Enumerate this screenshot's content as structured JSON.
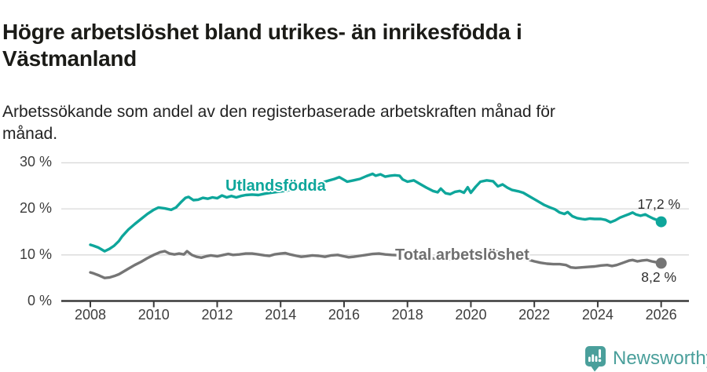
{
  "header": {
    "title": [
      "Högre arbetslöshet bland utrikes- än inrikesfödda i",
      "Västmanland"
    ],
    "subtitle": [
      "Arbetssökande som andel av den registerbaserade arbetskraften månad för",
      "månad."
    ]
  },
  "footer": {
    "brand": "Newsworthy"
  },
  "colors": {
    "accent_teal": "#0ea69b",
    "series_gray": "#757575",
    "grid": "#d9d9d9",
    "axis": "#3a3a3a",
    "axis_text": "#3d3d3d",
    "title_text": "#1b1b17",
    "value_label_text": "#2d2d2d",
    "logo_teal": "#4a9f9b"
  },
  "chart_data": {
    "type": "line",
    "title": "Högre arbetslöshet bland utrikes- än inrikesfödda i Västmanland",
    "subtitle": "Arbetssökande som andel av den registerbaserade arbetskraften månad för månad.",
    "unit": "%",
    "grid": true,
    "legend_position": "inline-labels",
    "x_axis": {
      "range": [
        2007.1,
        2026.9
      ],
      "ticks": [
        {
          "value": 2008,
          "label": "2008"
        },
        {
          "value": 2010,
          "label": "2010"
        },
        {
          "value": 2012,
          "label": "2012"
        },
        {
          "value": 2014,
          "label": "2014"
        },
        {
          "value": 2016,
          "label": "2016"
        },
        {
          "value": 2018,
          "label": "2018"
        },
        {
          "value": 2020,
          "label": "2020"
        },
        {
          "value": 2022,
          "label": "2022"
        },
        {
          "value": 2024,
          "label": "2024"
        },
        {
          "value": 2026,
          "label": "2026"
        }
      ]
    },
    "y_axis": {
      "range": [
        0,
        33
      ],
      "ticks": [
        {
          "value": 30,
          "label": "30 %"
        },
        {
          "value": 20,
          "label": "20 %"
        },
        {
          "value": 10,
          "label": "10 %"
        },
        {
          "value": 0,
          "label": "0 %"
        }
      ]
    },
    "series": [
      {
        "name": "Utlandsfödda",
        "label": "Utlandsfödda",
        "color": "#0ea69b",
        "end_value": 17.2,
        "end_label": "17,2 %",
        "points": [
          [
            2008.0,
            12.2
          ],
          [
            2008.1,
            12.0
          ],
          [
            2008.25,
            11.6
          ],
          [
            2008.45,
            10.8
          ],
          [
            2008.6,
            11.3
          ],
          [
            2008.75,
            12.0
          ],
          [
            2008.9,
            13.0
          ],
          [
            2009.0,
            14.0
          ],
          [
            2009.2,
            15.5
          ],
          [
            2009.4,
            16.7
          ],
          [
            2009.6,
            17.8
          ],
          [
            2009.8,
            18.9
          ],
          [
            2010.0,
            19.8
          ],
          [
            2010.15,
            20.3
          ],
          [
            2010.35,
            20.1
          ],
          [
            2010.55,
            19.8
          ],
          [
            2010.7,
            20.3
          ],
          [
            2010.85,
            21.4
          ],
          [
            2011.0,
            22.4
          ],
          [
            2011.1,
            22.6
          ],
          [
            2011.25,
            21.9
          ],
          [
            2011.4,
            22.0
          ],
          [
            2011.55,
            22.4
          ],
          [
            2011.7,
            22.2
          ],
          [
            2011.85,
            22.5
          ],
          [
            2012.0,
            22.3
          ],
          [
            2012.15,
            22.9
          ],
          [
            2012.3,
            22.5
          ],
          [
            2012.45,
            22.8
          ],
          [
            2012.6,
            22.5
          ],
          [
            2012.75,
            22.8
          ],
          [
            2012.9,
            23.0
          ],
          [
            2013.1,
            23.1
          ],
          [
            2013.3,
            23.0
          ],
          [
            2013.5,
            23.3
          ],
          [
            2013.7,
            23.5
          ],
          [
            2013.9,
            23.7
          ],
          [
            2014.1,
            23.9
          ],
          [
            2014.3,
            24.1
          ],
          [
            2014.5,
            24.3
          ],
          [
            2014.7,
            24.6
          ],
          [
            2014.9,
            25.0
          ],
          [
            2015.1,
            25.4
          ],
          [
            2015.3,
            25.7
          ],
          [
            2015.5,
            26.1
          ],
          [
            2015.7,
            26.5
          ],
          [
            2015.85,
            26.9
          ],
          [
            2016.0,
            26.3
          ],
          [
            2016.1,
            25.9
          ],
          [
            2016.3,
            26.2
          ],
          [
            2016.5,
            26.5
          ],
          [
            2016.7,
            27.1
          ],
          [
            2016.9,
            27.6
          ],
          [
            2017.0,
            27.2
          ],
          [
            2017.15,
            27.5
          ],
          [
            2017.3,
            27.0
          ],
          [
            2017.45,
            27.2
          ],
          [
            2017.6,
            27.3
          ],
          [
            2017.75,
            27.2
          ],
          [
            2017.85,
            26.4
          ],
          [
            2018.0,
            25.9
          ],
          [
            2018.2,
            26.2
          ],
          [
            2018.4,
            25.4
          ],
          [
            2018.6,
            24.6
          ],
          [
            2018.8,
            23.9
          ],
          [
            2018.95,
            23.6
          ],
          [
            2019.05,
            24.4
          ],
          [
            2019.2,
            23.4
          ],
          [
            2019.35,
            23.2
          ],
          [
            2019.5,
            23.7
          ],
          [
            2019.65,
            23.9
          ],
          [
            2019.78,
            23.5
          ],
          [
            2019.9,
            24.7
          ],
          [
            2020.0,
            23.5
          ],
          [
            2020.15,
            24.8
          ],
          [
            2020.3,
            25.9
          ],
          [
            2020.5,
            26.2
          ],
          [
            2020.7,
            26.0
          ],
          [
            2020.85,
            24.9
          ],
          [
            2021.0,
            25.3
          ],
          [
            2021.15,
            24.6
          ],
          [
            2021.3,
            24.1
          ],
          [
            2021.5,
            23.8
          ],
          [
            2021.65,
            23.5
          ],
          [
            2021.8,
            22.9
          ],
          [
            2022.0,
            22.1
          ],
          [
            2022.15,
            21.5
          ],
          [
            2022.3,
            20.9
          ],
          [
            2022.5,
            20.3
          ],
          [
            2022.65,
            19.9
          ],
          [
            2022.8,
            19.2
          ],
          [
            2022.95,
            18.9
          ],
          [
            2023.05,
            19.3
          ],
          [
            2023.2,
            18.4
          ],
          [
            2023.35,
            18.0
          ],
          [
            2023.5,
            17.8
          ],
          [
            2023.6,
            17.7
          ],
          [
            2023.75,
            17.9
          ],
          [
            2023.9,
            17.8
          ],
          [
            2024.1,
            17.8
          ],
          [
            2024.25,
            17.6
          ],
          [
            2024.4,
            17.1
          ],
          [
            2024.55,
            17.5
          ],
          [
            2024.7,
            18.1
          ],
          [
            2024.85,
            18.5
          ],
          [
            2025.0,
            18.9
          ],
          [
            2025.1,
            19.2
          ],
          [
            2025.2,
            18.8
          ],
          [
            2025.35,
            18.5
          ],
          [
            2025.5,
            18.8
          ],
          [
            2025.6,
            18.4
          ],
          [
            2025.75,
            17.9
          ],
          [
            2025.9,
            17.5
          ],
          [
            2026.0,
            17.2
          ]
        ]
      },
      {
        "name": "Total arbetslöshet",
        "label": "Total arbetslöshet",
        "color": "#757575",
        "end_value": 8.2,
        "end_label": "8,2 %",
        "points": [
          [
            2008.0,
            6.2
          ],
          [
            2008.1,
            6.0
          ],
          [
            2008.25,
            5.6
          ],
          [
            2008.45,
            5.0
          ],
          [
            2008.6,
            5.1
          ],
          [
            2008.75,
            5.4
          ],
          [
            2008.9,
            5.8
          ],
          [
            2009.0,
            6.2
          ],
          [
            2009.2,
            7.0
          ],
          [
            2009.4,
            7.8
          ],
          [
            2009.6,
            8.5
          ],
          [
            2009.8,
            9.3
          ],
          [
            2010.0,
            10.0
          ],
          [
            2010.2,
            10.6
          ],
          [
            2010.35,
            10.8
          ],
          [
            2010.5,
            10.3
          ],
          [
            2010.65,
            10.1
          ],
          [
            2010.8,
            10.3
          ],
          [
            2010.95,
            10.1
          ],
          [
            2011.05,
            10.8
          ],
          [
            2011.2,
            10.0
          ],
          [
            2011.35,
            9.6
          ],
          [
            2011.5,
            9.4
          ],
          [
            2011.65,
            9.7
          ],
          [
            2011.8,
            9.9
          ],
          [
            2012.0,
            9.7
          ],
          [
            2012.2,
            10.0
          ],
          [
            2012.35,
            10.2
          ],
          [
            2012.5,
            10.0
          ],
          [
            2012.7,
            10.1
          ],
          [
            2012.9,
            10.3
          ],
          [
            2013.1,
            10.3
          ],
          [
            2013.3,
            10.1
          ],
          [
            2013.5,
            9.9
          ],
          [
            2013.65,
            9.8
          ],
          [
            2013.8,
            10.1
          ],
          [
            2014.0,
            10.3
          ],
          [
            2014.15,
            10.4
          ],
          [
            2014.3,
            10.1
          ],
          [
            2014.5,
            9.8
          ],
          [
            2014.65,
            9.6
          ],
          [
            2014.8,
            9.7
          ],
          [
            2015.0,
            9.9
          ],
          [
            2015.2,
            9.8
          ],
          [
            2015.4,
            9.6
          ],
          [
            2015.6,
            9.9
          ],
          [
            2015.8,
            10.0
          ],
          [
            2016.0,
            9.7
          ],
          [
            2016.15,
            9.5
          ],
          [
            2016.3,
            9.6
          ],
          [
            2016.5,
            9.8
          ],
          [
            2016.7,
            10.0
          ],
          [
            2016.9,
            10.2
          ],
          [
            2017.1,
            10.3
          ],
          [
            2017.3,
            10.1
          ],
          [
            2017.5,
            10.0
          ],
          [
            2017.8,
            9.9
          ],
          [
            2018.0,
            9.7
          ],
          [
            2018.3,
            9.5
          ],
          [
            2018.6,
            9.3
          ],
          [
            2019.0,
            9.2
          ],
          [
            2019.4,
            9.1
          ],
          [
            2019.8,
            9.4
          ],
          [
            2020.1,
            9.8
          ],
          [
            2020.4,
            11.0
          ],
          [
            2020.6,
            11.1
          ],
          [
            2020.9,
            10.6
          ],
          [
            2021.2,
            10.0
          ],
          [
            2021.5,
            9.5
          ],
          [
            2021.8,
            9.0
          ],
          [
            2022.0,
            8.6
          ],
          [
            2022.2,
            8.3
          ],
          [
            2022.4,
            8.1
          ],
          [
            2022.6,
            8.0
          ],
          [
            2022.8,
            8.0
          ],
          [
            2023.0,
            7.8
          ],
          [
            2023.15,
            7.3
          ],
          [
            2023.3,
            7.2
          ],
          [
            2023.5,
            7.3
          ],
          [
            2023.7,
            7.4
          ],
          [
            2023.9,
            7.5
          ],
          [
            2024.1,
            7.7
          ],
          [
            2024.3,
            7.8
          ],
          [
            2024.45,
            7.6
          ],
          [
            2024.6,
            7.8
          ],
          [
            2024.8,
            8.3
          ],
          [
            2025.0,
            8.8
          ],
          [
            2025.1,
            8.9
          ],
          [
            2025.25,
            8.6
          ],
          [
            2025.4,
            8.8
          ],
          [
            2025.55,
            8.9
          ],
          [
            2025.7,
            8.6
          ],
          [
            2025.85,
            8.4
          ],
          [
            2026.0,
            8.2
          ]
        ]
      }
    ]
  }
}
